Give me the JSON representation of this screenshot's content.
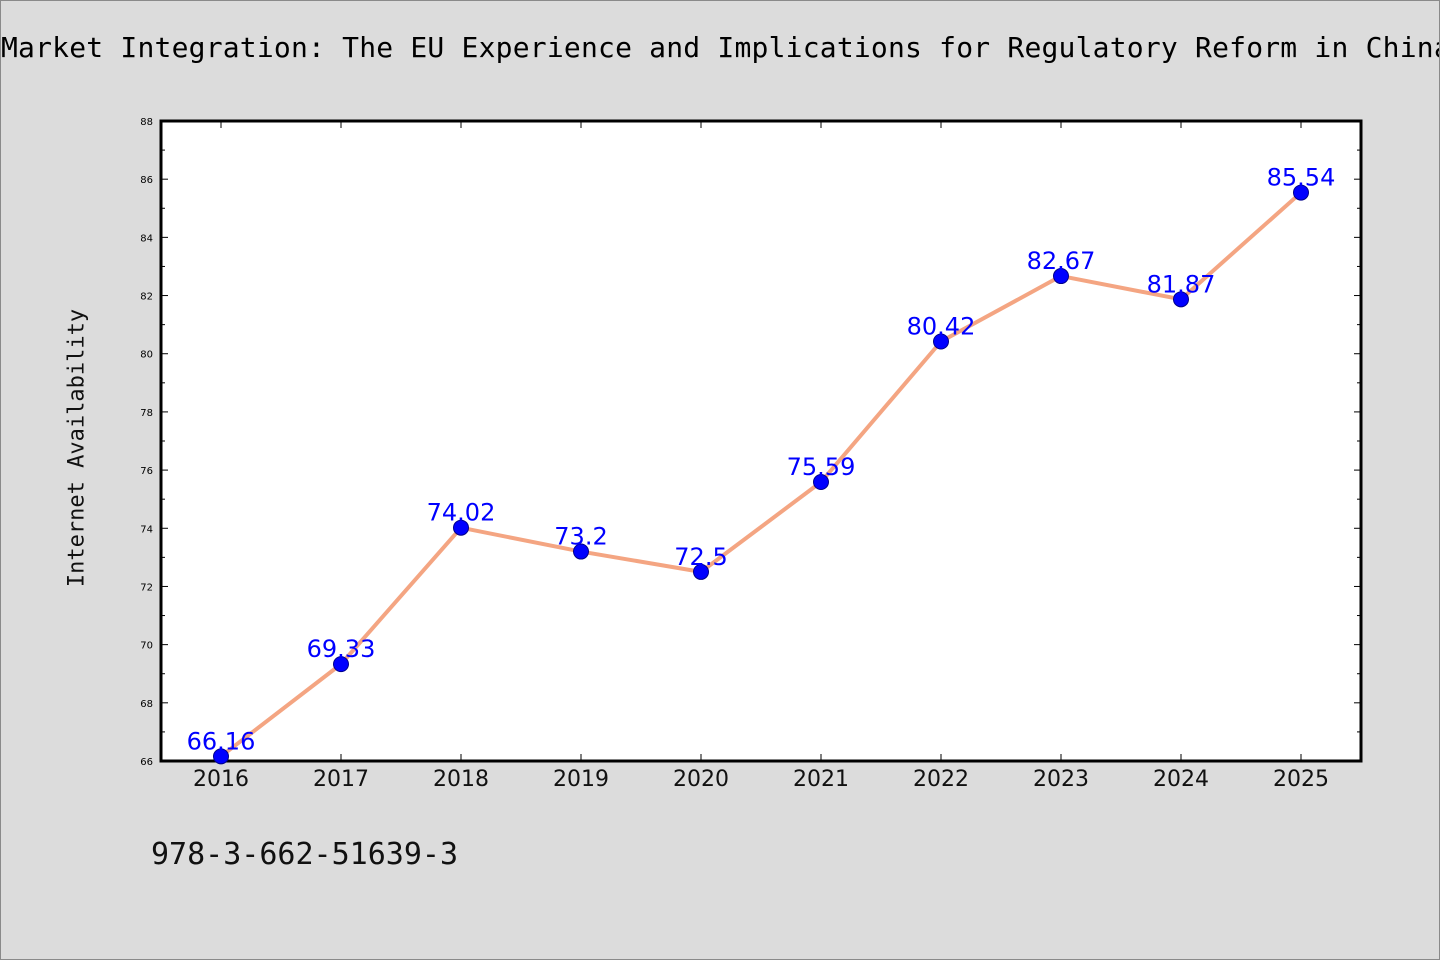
{
  "title": "Market Integration: The EU Experience and Implications for Regulatory Reform in China",
  "footnote": "978-3-662-51639-3",
  "colors": {
    "background": "#dcdcdc",
    "plot_background": "#ffffff",
    "line": "#f4a582",
    "marker": "#0000ff",
    "data_label": "#0000ff"
  },
  "chart_data": {
    "type": "line",
    "title": "Market Integration: The EU Experience and Implications for Regulatory Reform in China",
    "xlabel": "",
    "ylabel": "Internet Availability",
    "categories": [
      "2016",
      "2017",
      "2018",
      "2019",
      "2020",
      "2021",
      "2022",
      "2023",
      "2024",
      "2025"
    ],
    "series": [
      {
        "values": [
          66.16,
          69.33,
          74.02,
          73.2,
          72.5,
          75.59,
          80.42,
          82.67,
          81.87,
          85.54
        ],
        "labels": [
          "66.16",
          "69.33",
          "74.02",
          "73.2",
          "72.5",
          "75.59",
          "80.42",
          "82.67",
          "81.87",
          "85.54"
        ]
      }
    ],
    "ylim": [
      66,
      88
    ],
    "yticks": [
      "66",
      "68",
      "70",
      "72",
      "74",
      "76",
      "78",
      "80",
      "82",
      "84",
      "86",
      "88"
    ],
    "grid": false,
    "legend": "none"
  }
}
